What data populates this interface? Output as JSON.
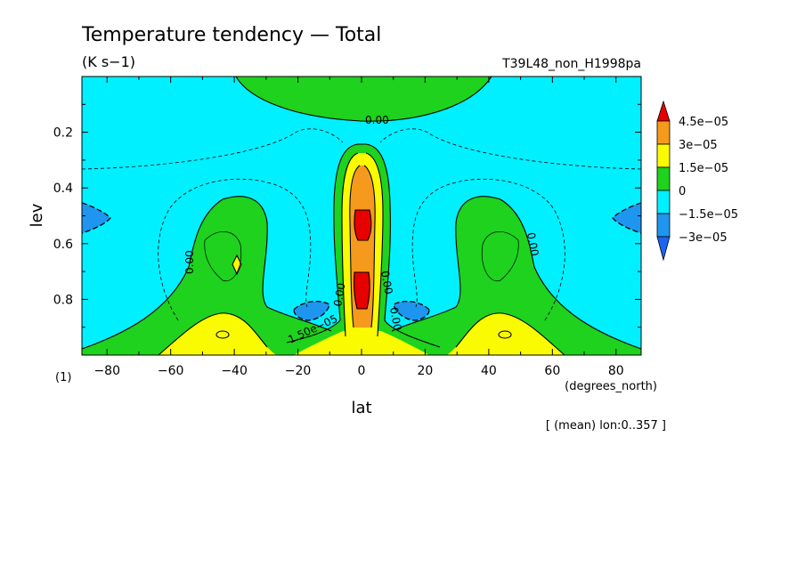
{
  "chart_data": {
    "type": "heatmap",
    "title": "Temperature tendency — Total",
    "units": "(K s−1)",
    "run_label": "T39L48_non_H1998pa",
    "xlabel": "lat",
    "x_units": "(degrees_north)",
    "ylabel": "lev",
    "y_units": "(1)",
    "mean_note": "[ (mean) lon:0..357 ]",
    "xlim": [
      -87.9,
      87.9
    ],
    "ylim": [
      1.0,
      0.0
    ],
    "x_ticks": [
      -80,
      -60,
      -40,
      -20,
      0,
      20,
      40,
      60,
      80
    ],
    "x_tick_labels": [
      "−80",
      "−60",
      "−40",
      "−20",
      "0",
      "20",
      "40",
      "60",
      "80"
    ],
    "y_ticks": [
      0.2,
      0.4,
      0.6,
      0.8
    ],
    "y_tick_labels": [
      "0.2",
      "0.4",
      "0.6",
      "0.8"
    ],
    "colorbar": {
      "labels": [
        "4.5e−05",
        "3e−05",
        "1.5e−05",
        "0",
        "−1.5e−05",
        "−3e−05"
      ],
      "colors": [
        "#e60000",
        "#f59a1c",
        "#fafa00",
        "#1ed21e",
        "#00ecff",
        "#1e96f0",
        "#1e64f0",
        "#e60000"
      ]
    },
    "contour_labels": [
      "0.00",
      "0.00",
      "0.00",
      "0.00",
      "0.00",
      "0.00",
      "1.50e−05"
    ],
    "colors": {
      "neg2": "#1e96f0",
      "neg1": "#00f0ff",
      "pos1": "#1ed21e",
      "pos2": "#fafa00",
      "pos3": "#f59a1c",
      "pos4": "#e60000"
    }
  }
}
